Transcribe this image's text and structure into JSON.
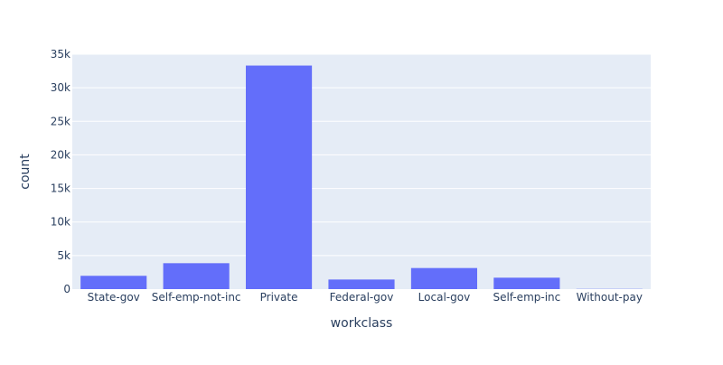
{
  "chart_data": {
    "type": "bar",
    "categories": [
      "State-gov",
      "Self-emp-not-inc",
      "Private",
      "Federal-gov",
      "Local-gov",
      "Self-emp-inc",
      "Without-pay"
    ],
    "values": [
      1980,
      3860,
      33310,
      1430,
      3140,
      1700,
      30
    ],
    "xlabel": "workclass",
    "ylabel": "count",
    "ylim": [
      0,
      35000
    ],
    "yticks": [
      0,
      5000,
      10000,
      15000,
      20000,
      25000,
      30000,
      35000
    ],
    "ytick_labels": [
      "0",
      "5k",
      "10k",
      "15k",
      "20k",
      "25k",
      "30k",
      "35k"
    ],
    "grid": true,
    "colors": {
      "bar": "#636efa",
      "plot_background": "#e5ecf6",
      "grid": "#ffffff",
      "text": "#2a3f5f"
    }
  }
}
